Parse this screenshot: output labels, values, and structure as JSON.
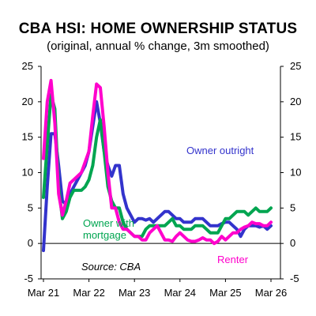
{
  "chart_data": {
    "type": "line",
    "title": "CBA HSI: HOME OWNERSHIP STATUS",
    "subtitle": "(original, annual % change, 3m smoothed)",
    "source": "Source: CBA",
    "xlabel": "",
    "ylabel": "",
    "ylim": [
      -5,
      25
    ],
    "yticks": [
      "-5",
      "0",
      "5",
      "10",
      "15",
      "20",
      "25"
    ],
    "yticks_right": [
      "-5",
      "0",
      "5",
      "10",
      "15",
      "20",
      "25"
    ],
    "xticks": [
      "Mar 21",
      "Mar 22",
      "Mar 23",
      "Mar 24",
      "Mar 25",
      "Mar 26"
    ],
    "x_start": "Mar 21",
    "x_end": "Jan 26",
    "grid": false,
    "series": [
      {
        "name": "Owner outright",
        "color": "#3333cc",
        "values": [
          -1,
          8,
          15.5,
          15.5,
          11,
          6,
          5.5,
          7,
          8,
          9,
          10,
          11,
          13,
          16.5,
          20,
          17,
          13,
          11,
          9.5,
          11,
          11,
          7,
          5,
          4,
          3,
          3.5,
          3.5,
          3.3,
          3.5,
          3,
          3.5,
          4,
          4.5,
          4.5,
          4,
          3.5,
          3.5,
          3,
          3,
          3,
          3.5,
          3.5,
          3.5,
          3,
          2.5,
          2.5,
          2.5,
          2.8,
          3,
          3,
          2.5,
          2,
          1,
          2,
          2.5,
          2.5,
          2.5,
          2.3,
          2.5,
          2,
          2.5
        ]
      },
      {
        "name": "Owner with mortgage",
        "color": "#00a550",
        "values": [
          6.5,
          14,
          21,
          19,
          8,
          3.5,
          4.5,
          6.5,
          7.5,
          7.5,
          7.5,
          8,
          9,
          11,
          15,
          17.5,
          13,
          8,
          6,
          5,
          5,
          3,
          2,
          1.5,
          1,
          1,
          1,
          2,
          2.5,
          2.5,
          2.5,
          2.5,
          2.5,
          3,
          3.5,
          2.5,
          2.5,
          2,
          2,
          2,
          2.5,
          2.5,
          2.5,
          2,
          1.5,
          1.5,
          1.5,
          2.5,
          3.5,
          3.5,
          4,
          4.5,
          4.5,
          4.5,
          4,
          4.5,
          5,
          4.5,
          4.5,
          4.5,
          5
        ]
      },
      {
        "name": "Renter",
        "color": "#ff00cc",
        "values": [
          12,
          20,
          23,
          17,
          7,
          4,
          6,
          8.5,
          9,
          9.5,
          10,
          11.5,
          13,
          18,
          22.5,
          22,
          16.5,
          10,
          5,
          5,
          3,
          2,
          2,
          1.5,
          1,
          1,
          0.5,
          0.5,
          1.5,
          2,
          2.5,
          1.5,
          0.5,
          0.5,
          0.3,
          1,
          1.5,
          1,
          0.5,
          0.3,
          0.3,
          0.5,
          0.8,
          0.5,
          0.5,
          0,
          0.3,
          1,
          0.5,
          1,
          1.5,
          1.5,
          2,
          2.3,
          2.5,
          3,
          2.8,
          2.8,
          2.5,
          2.5,
          3
        ]
      }
    ],
    "annotations": [
      {
        "text": "Owner outright",
        "series": "Owner outright"
      },
      {
        "text": "Owner with",
        "series": "Owner with mortgage"
      },
      {
        "text": "mortgage",
        "series": "Owner with mortgage"
      },
      {
        "text": "Renter",
        "series": "Renter"
      }
    ]
  }
}
